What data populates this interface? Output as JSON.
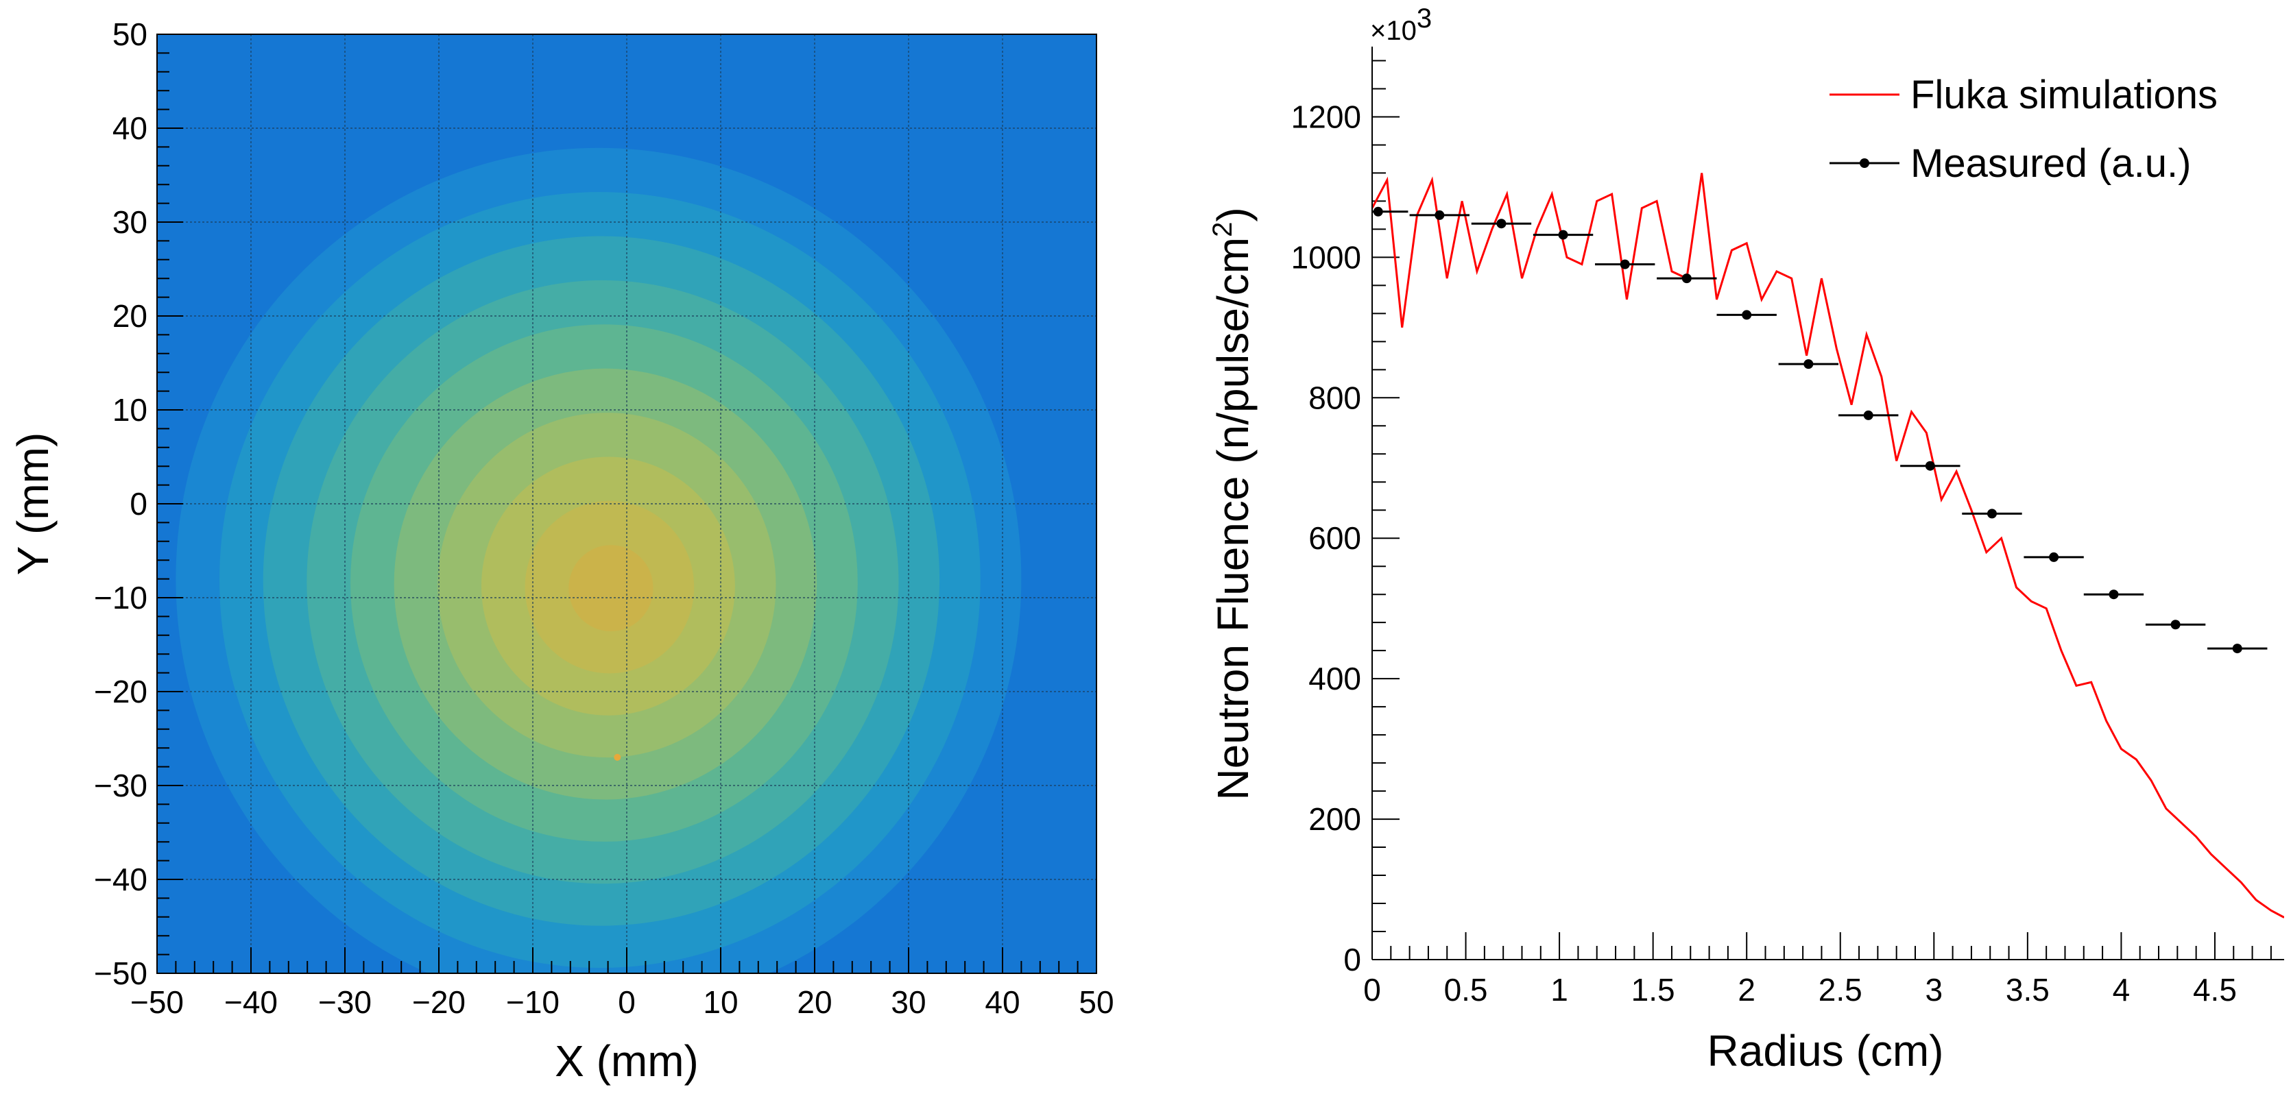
{
  "chart_data": [
    {
      "type": "heatmap",
      "title": "",
      "xlabel": "X (mm)",
      "ylabel": "Y (mm)",
      "xlim": [
        -50,
        50
      ],
      "ylim": [
        -50,
        50
      ],
      "x_ticks": [
        "−50",
        "−40",
        "−30",
        "−20",
        "−10",
        "0",
        "10",
        "20",
        "30",
        "40",
        "50"
      ],
      "y_ticks": [
        "−50",
        "−40",
        "−30",
        "−20",
        "−10",
        "0",
        "10",
        "20",
        "30",
        "40",
        "50"
      ],
      "x_tick_values": [
        -50,
        -40,
        -30,
        -20,
        -10,
        0,
        10,
        20,
        30,
        40,
        50
      ],
      "y_tick_values": [
        -50,
        -40,
        -30,
        -20,
        -10,
        0,
        10,
        20,
        30,
        40,
        50
      ],
      "grid": true,
      "beam_center": [
        -3,
        -8
      ],
      "beam_radius_edge": 45,
      "colors": {
        "background": "#1577d3",
        "levels": [
          "#1a87d2",
          "#2096c9",
          "#30a3b8",
          "#45ada6",
          "#5eb592",
          "#7dba7e",
          "#98bd6d",
          "#b0bd5d",
          "#c0b952",
          "#cbb34a"
        ],
        "hotspot": "#e8a83a"
      }
    },
    {
      "type": "line",
      "title": "",
      "xlabel": "Radius (cm)",
      "ylabel_main": "Neutron Fluence (n/pulse/cm",
      "ylabel_sup": "2",
      "ylabel_close": ")",
      "axis_multiplier_base": "×10",
      "axis_multiplier_exp": "3",
      "xlim": [
        0,
        4.87
      ],
      "ylim": [
        0,
        1300
      ],
      "x_ticks": [
        "0",
        "0.5",
        "1",
        "1.5",
        "2",
        "2.5",
        "3",
        "3.5",
        "4",
        "4.5"
      ],
      "x_tick_values": [
        0,
        0.5,
        1,
        1.5,
        2,
        2.5,
        3,
        3.5,
        4,
        4.5
      ],
      "y_ticks": [
        "0",
        "200",
        "400",
        "600",
        "800",
        "1000",
        "1200"
      ],
      "y_tick_values": [
        0,
        200,
        400,
        600,
        800,
        1000,
        1200
      ],
      "grid": false,
      "legend": {
        "position": "top-right",
        "entries": [
          "Fluka simulations",
          "Measured (a.u.)"
        ]
      },
      "series": [
        {
          "name": "Fluka simulations",
          "color": "#ff0000",
          "x": [
            0.0,
            0.08,
            0.16,
            0.24,
            0.32,
            0.4,
            0.48,
            0.56,
            0.64,
            0.72,
            0.8,
            0.88,
            0.96,
            1.04,
            1.12,
            1.2,
            1.28,
            1.36,
            1.44,
            1.52,
            1.6,
            1.68,
            1.76,
            1.84,
            1.92,
            2.0,
            2.08,
            2.16,
            2.24,
            2.32,
            2.4,
            2.48,
            2.56,
            2.64,
            2.72,
            2.8,
            2.88,
            2.96,
            3.04,
            3.12,
            3.2,
            3.28,
            3.36,
            3.44,
            3.52,
            3.6,
            3.68,
            3.76,
            3.84,
            3.92,
            4.0,
            4.08,
            4.16,
            4.24,
            4.32,
            4.4,
            4.48,
            4.56,
            4.64,
            4.72,
            4.8,
            4.87
          ],
          "y": [
            1070,
            1110,
            900,
            1060,
            1110,
            970,
            1080,
            980,
            1040,
            1090,
            970,
            1040,
            1090,
            1000,
            990,
            1080,
            1090,
            940,
            1070,
            1080,
            980,
            970,
            1120,
            940,
            1010,
            1020,
            940,
            980,
            970,
            860,
            970,
            870,
            790,
            890,
            830,
            710,
            780,
            750,
            655,
            695,
            640,
            580,
            600,
            530,
            510,
            500,
            440,
            390,
            395,
            340,
            300,
            285,
            255,
            215,
            195,
            175,
            150,
            130,
            110,
            85,
            70,
            60
          ]
        },
        {
          "name": "Measured (a.u.)",
          "color": "#000000",
          "x": [
            0.032,
            0.36,
            0.69,
            1.02,
            1.35,
            1.68,
            2.0,
            2.33,
            2.65,
            2.98,
            3.31,
            3.64,
            3.96,
            4.29,
            4.62
          ],
          "y": [
            1065,
            1060,
            1048,
            1032,
            990,
            970,
            918,
            848,
            775,
            703,
            635,
            573,
            520,
            477,
            443
          ],
          "x_error": 0.16
        }
      ]
    }
  ]
}
